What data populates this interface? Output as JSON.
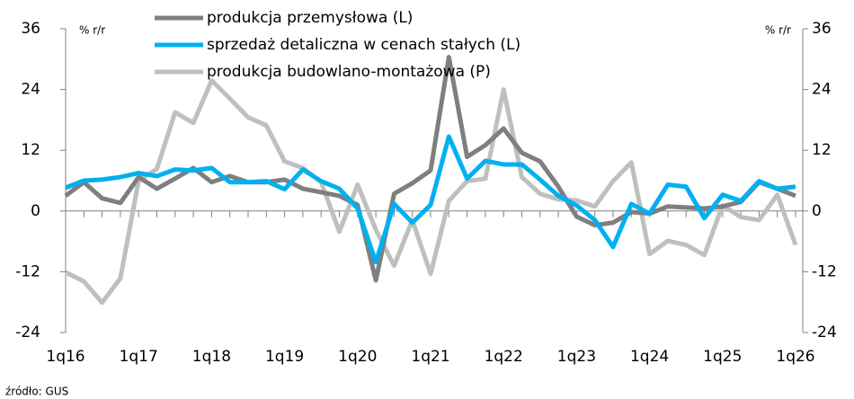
{
  "chart_data": {
    "type": "line",
    "categories": [
      "1q16",
      null,
      null,
      null,
      "1q17",
      null,
      null,
      null,
      "1q18",
      null,
      null,
      null,
      "1q19",
      null,
      null,
      null,
      "1q20",
      null,
      null,
      null,
      "1q21",
      null,
      null,
      null,
      "1q22",
      null,
      null,
      null,
      "1q23",
      null,
      null,
      null,
      "1q24",
      null,
      null,
      null,
      "1q25",
      null,
      null,
      null,
      "1q26"
    ],
    "series": [
      {
        "name": "produkcja przemysłowa (L)",
        "color": "#7f7f7f",
        "values": [
          3.0,
          5.7,
          2.5,
          1.6,
          6.7,
          4.4,
          6.4,
          8.5,
          5.7,
          6.9,
          5.7,
          5.7,
          6.2,
          4.4,
          3.7,
          3.0,
          1.2,
          -13.7,
          3.4,
          5.5,
          8.0,
          30.4,
          10.7,
          13.0,
          16.3,
          11.5,
          9.8,
          4.8,
          -1.1,
          -2.8,
          -2.3,
          -0.2,
          -0.5,
          0.9,
          0.7,
          0.5,
          0.9,
          1.8,
          5.7,
          4.4,
          3.0
        ]
      },
      {
        "name": "sprzedaż detaliczna w cenach stałych (L)",
        "color": "#00b0f0",
        "values": [
          4.6,
          6.0,
          6.2,
          6.7,
          7.5,
          6.9,
          8.2,
          8.0,
          8.5,
          5.7,
          5.7,
          5.9,
          4.3,
          8.2,
          5.9,
          4.4,
          0.5,
          -10.1,
          1.4,
          -2.3,
          1.2,
          14.7,
          6.4,
          9.9,
          9.2,
          9.2,
          6.2,
          3.0,
          1.1,
          -1.8,
          -7.1,
          1.4,
          -0.5,
          5.2,
          4.8,
          -1.4,
          3.2,
          2.0,
          5.9,
          4.4,
          4.8
        ]
      },
      {
        "name": "produkcja budowlano-montażowa (P)",
        "color": "#bfbfbf",
        "axis": "y2",
        "values": [
          -12.1,
          -13.9,
          -18.1,
          -13.3,
          6.0,
          8.3,
          19.5,
          17.4,
          25.8,
          22.2,
          18.5,
          16.9,
          9.8,
          8.5,
          5.7,
          -4.1,
          5.2,
          -3.7,
          -10.8,
          -1.8,
          -12.4,
          2.0,
          5.9,
          6.4,
          24.0,
          6.7,
          3.4,
          2.3,
          2.1,
          0.9,
          5.9,
          9.6,
          -8.5,
          -5.9,
          -6.7,
          -8.7,
          1.1,
          -1.2,
          -1.8,
          3.2,
          -6.7
        ]
      }
    ],
    "ylim": [
      -24,
      36
    ],
    "yticks": [
      -24,
      -12,
      0,
      12,
      24,
      36
    ],
    "y2lim": [
      -24,
      36
    ],
    "y2ticks": [
      -24,
      -12,
      0,
      12,
      24,
      36
    ],
    "ylabel": "% r/r",
    "y2label": "% r/r",
    "source": "źródło: GUS"
  }
}
